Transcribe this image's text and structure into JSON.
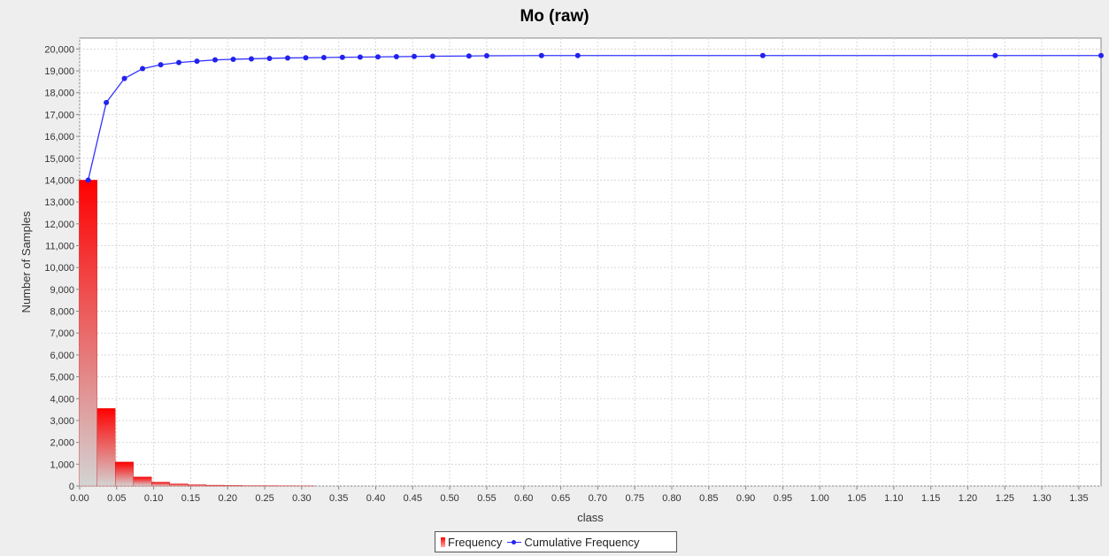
{
  "chart_data": {
    "type": "bar",
    "title": "Mo (raw)",
    "xlabel": "class",
    "ylabel": "Number of Samples",
    "xlim": [
      0,
      1.38
    ],
    "ylim": [
      0,
      20500
    ],
    "grid": true,
    "legend_position": "bottom",
    "x_ticks": [
      "0.00",
      "0.05",
      "0.10",
      "0.15",
      "0.20",
      "0.25",
      "0.30",
      "0.35",
      "0.40",
      "0.45",
      "0.50",
      "0.55",
      "0.60",
      "0.65",
      "0.70",
      "0.75",
      "0.80",
      "0.85",
      "0.90",
      "0.95",
      "1.00",
      "1.05",
      "1.10",
      "1.15",
      "1.20",
      "1.25",
      "1.30",
      "1.35"
    ],
    "y_ticks": [
      "0",
      "1,000",
      "2,000",
      "3,000",
      "4,000",
      "5,000",
      "6,000",
      "7,000",
      "8,000",
      "9,000",
      "10,000",
      "11,000",
      "12,000",
      "13,000",
      "14,000",
      "15,000",
      "16,000",
      "17,000",
      "18,000",
      "19,000",
      "20,000"
    ],
    "bar_width": 0.0245,
    "series": [
      {
        "name": "Frequency",
        "type": "bar",
        "color": "#ff0000",
        "x": [
          0.0115,
          0.036,
          0.0605,
          0.085,
          0.1095,
          0.134,
          0.1585,
          0.183,
          0.2075,
          0.232,
          0.2565,
          0.281,
          0.3055
        ],
        "values": [
          14000,
          3550,
          1100,
          420,
          180,
          100,
          60,
          40,
          25,
          15,
          10,
          6,
          4
        ]
      },
      {
        "name": "Cumulative Frequency",
        "type": "line",
        "color": "#3333ff",
        "x": [
          0.0115,
          0.036,
          0.0605,
          0.085,
          0.1095,
          0.134,
          0.1585,
          0.183,
          0.2075,
          0.232,
          0.2565,
          0.281,
          0.3055,
          0.33,
          0.355,
          0.379,
          0.403,
          0.428,
          0.452,
          0.477,
          0.526,
          0.55,
          0.624,
          0.673,
          0.923,
          1.237,
          1.38
        ],
        "values": [
          14000,
          17550,
          18650,
          19100,
          19280,
          19380,
          19440,
          19500,
          19530,
          19550,
          19570,
          19590,
          19600,
          19610,
          19620,
          19630,
          19640,
          19650,
          19660,
          19670,
          19680,
          19690,
          19700,
          19700,
          19700,
          19700,
          19700
        ]
      }
    ]
  }
}
